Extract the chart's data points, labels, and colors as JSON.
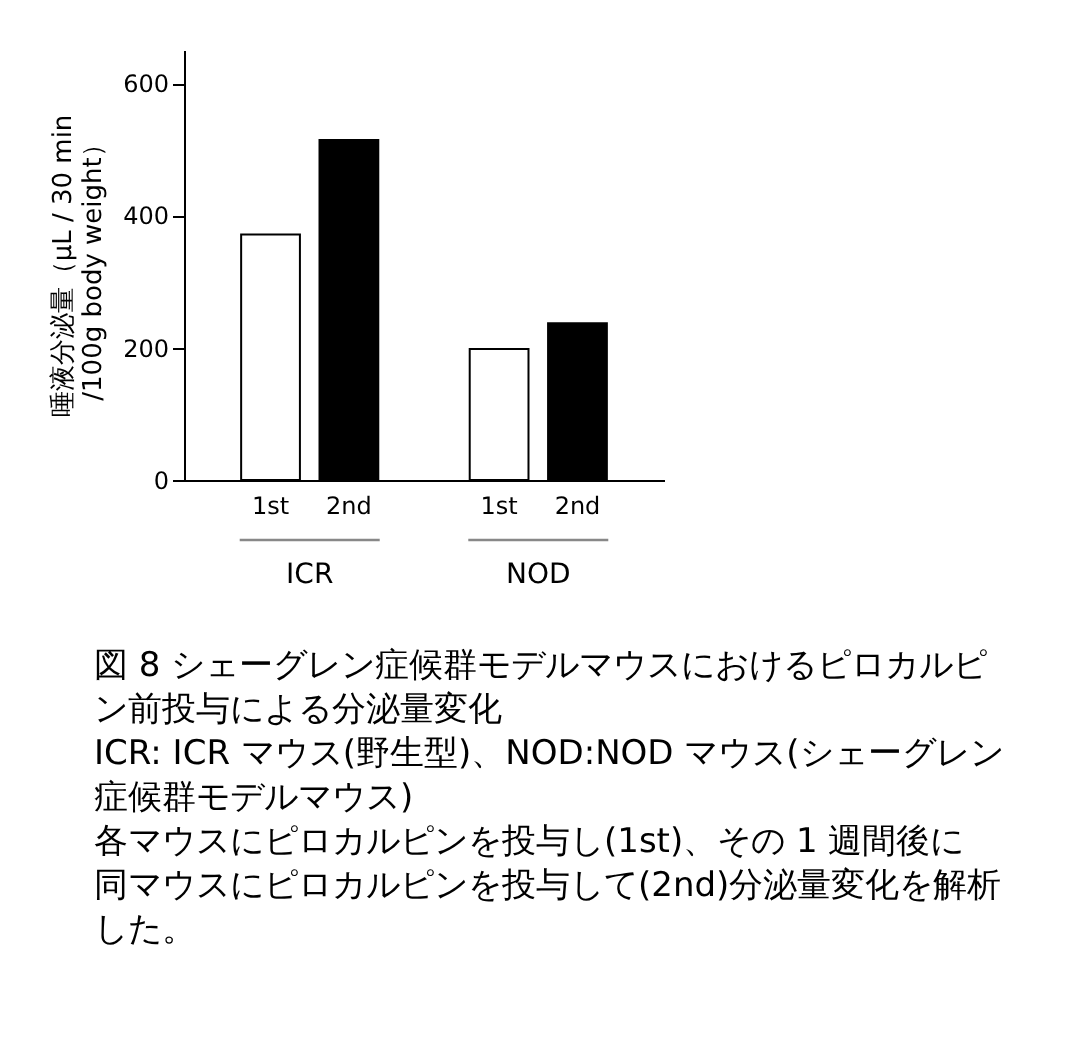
{
  "chart_data": {
    "type": "bar",
    "ylabel": "唾液分泌量（μL / 30 min\n/100g body weight）",
    "categories": [
      "ICR",
      "NOD"
    ],
    "series": [
      {
        "name": "1st",
        "color": "#ffffff",
        "values": [
          371,
          198
        ]
      },
      {
        "name": "2nd",
        "color": "#000000",
        "values": [
          514,
          237
        ]
      }
    ],
    "ylim": [
      0,
      650
    ],
    "yticks": [
      0,
      200,
      400,
      600
    ],
    "grid": false,
    "annotations": [
      "図 8 シェーグレン症候群モデルマウスにおけるピロカルピン前投与による分泌量変化",
      "ICR: ICR マウス(野生型)、NOD:NOD マウス(シェーグレン症候群モデルマウス)",
      "各マウスにピロカルピンを投与し(1st)、その 1 週間後に同マウスにピロカルピンを投与して(2nd)分泌量変化を解析した。"
    ]
  }
}
